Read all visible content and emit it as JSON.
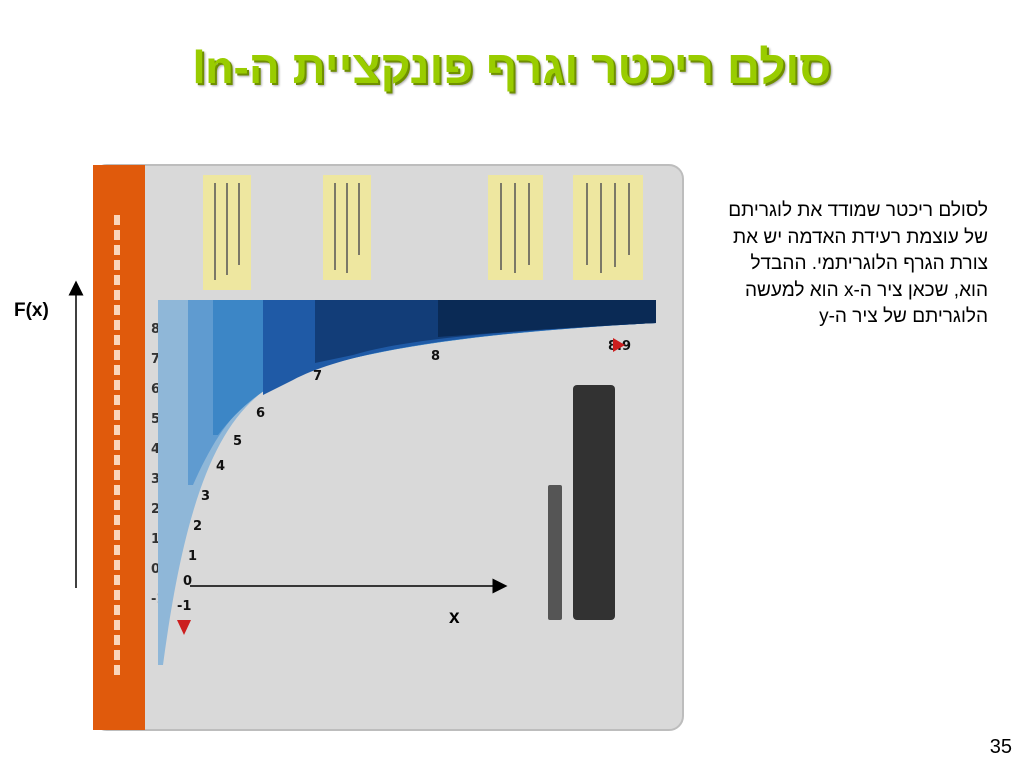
{
  "slide": {
    "title": "סולם ריכטר וגרף פונקציית ה-ln",
    "body_text": "לסולם ריכטר שמודד את לוגריתם של עוצמת רעידת האדמה יש את צורת הגרף הלוגריתמי. ההבדל הוא, שכאן ציר ה-x הוא למעשה הלוגריתם של ציר ה-y",
    "page_number": "35"
  },
  "axes": {
    "y_label": "F(x)",
    "x_label": "x"
  },
  "figure": {
    "kind": "scanned-infographic",
    "scale_numbers": [
      "-1",
      "0",
      "1",
      "2",
      "3",
      "4",
      "5",
      "6",
      "7",
      "8",
      "8.9"
    ],
    "colors": {
      "orange_band": "#e05a0c",
      "background": "#d9d9d9",
      "light_blue": "#8fb7d8",
      "mid_blue": "#3c86c6",
      "blue": "#1f5aa6",
      "dark_blue": "#123d78",
      "navy": "#0a2a55",
      "note_yellow": "#eee7a0",
      "marker_red": "#cc1f1f"
    }
  }
}
